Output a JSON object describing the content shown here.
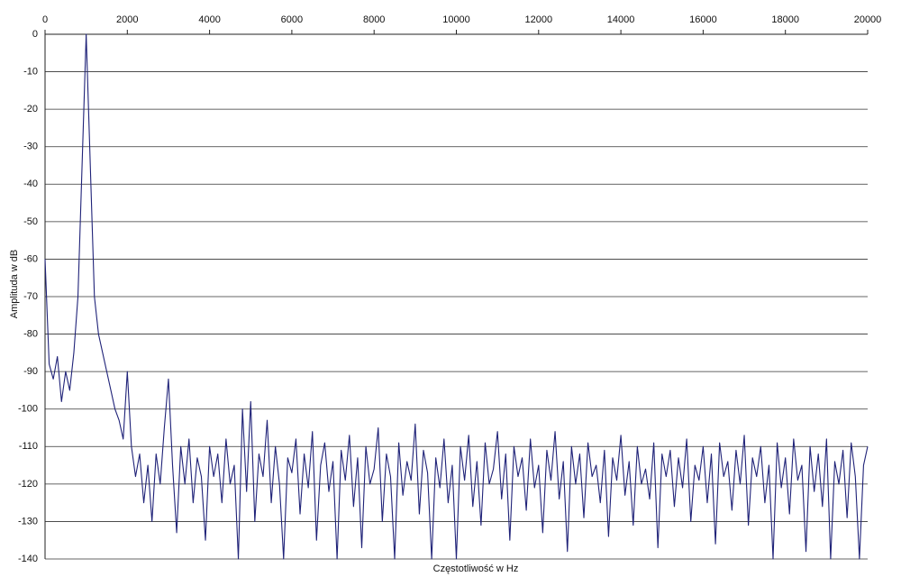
{
  "chart_data": {
    "type": "line",
    "xlabel": "Częstotliwość w Hz",
    "ylabel": "Amplituda w dB",
    "xlim": [
      0,
      20000
    ],
    "xticks": [
      0,
      2000,
      4000,
      6000,
      8000,
      10000,
      12000,
      14000,
      16000,
      18000,
      20000
    ],
    "ylim": [
      -140,
      0
    ],
    "yticks": [
      0,
      -10,
      -20,
      -30,
      -40,
      -50,
      -60,
      -70,
      -80,
      -90,
      -100,
      -110,
      -120,
      -130,
      -140
    ],
    "grid": true,
    "color": "#1f2278",
    "x": [
      0,
      100,
      200,
      300,
      400,
      500,
      600,
      700,
      800,
      900,
      1000,
      1100,
      1200,
      1300,
      1400,
      1500,
      1600,
      1700,
      1800,
      1900,
      2000,
      2100,
      2200,
      2300,
      2400,
      2500,
      2600,
      2700,
      2800,
      2900,
      3000,
      3100,
      3200,
      3300,
      3400,
      3500,
      3600,
      3700,
      3800,
      3900,
      4000,
      4100,
      4200,
      4300,
      4400,
      4500,
      4600,
      4700,
      4800,
      4900,
      5000,
      5100,
      5200,
      5300,
      5400,
      5500,
      5600,
      5700,
      5800,
      5900,
      6000,
      6100,
      6200,
      6300,
      6400,
      6500,
      6600,
      6700,
      6800,
      6900,
      7000,
      7100,
      7200,
      7300,
      7400,
      7500,
      7600,
      7700,
      7800,
      7900,
      8000,
      8100,
      8200,
      8300,
      8400,
      8500,
      8600,
      8700,
      8800,
      8900,
      9000,
      9100,
      9200,
      9300,
      9400,
      9500,
      9600,
      9700,
      9800,
      9900,
      10000,
      10100,
      10200,
      10300,
      10400,
      10500,
      10600,
      10700,
      10800,
      10900,
      11000,
      11100,
      11200,
      11300,
      11400,
      11500,
      11600,
      11700,
      11800,
      11900,
      12000,
      12100,
      12200,
      12300,
      12400,
      12500,
      12600,
      12700,
      12800,
      12900,
      13000,
      13100,
      13200,
      13300,
      13400,
      13500,
      13600,
      13700,
      13800,
      13900,
      14000,
      14100,
      14200,
      14300,
      14400,
      14500,
      14600,
      14700,
      14800,
      14900,
      15000,
      15100,
      15200,
      15300,
      15400,
      15500,
      15600,
      15700,
      15800,
      15900,
      16000,
      16100,
      16200,
      16300,
      16400,
      16500,
      16600,
      16700,
      16800,
      16900,
      17000,
      17100,
      17200,
      17300,
      17400,
      17500,
      17600,
      17700,
      17800,
      17900,
      18000,
      18100,
      18200,
      18300,
      18400,
      18500,
      18600,
      18700,
      18800,
      18900,
      19000,
      19100,
      19200,
      19300,
      19400,
      19500,
      19600,
      19700,
      19800,
      19900,
      20000
    ],
    "values": [
      -60,
      -88,
      -92,
      -86,
      -98,
      -90,
      -95,
      -85,
      -70,
      -35,
      0,
      -35,
      -70,
      -80,
      -85,
      -90,
      -95,
      -100,
      -103,
      -108,
      -90,
      -110,
      -118,
      -112,
      -125,
      -115,
      -130,
      -112,
      -120,
      -105,
      -92,
      -115,
      -133,
      -110,
      -120,
      -108,
      -125,
      -113,
      -118,
      -135,
      -110,
      -118,
      -112,
      -125,
      -108,
      -120,
      -115,
      -140,
      -100,
      -122,
      -98,
      -130,
      -112,
      -118,
      -103,
      -125,
      -110,
      -120,
      -140,
      -113,
      -117,
      -108,
      -128,
      -112,
      -121,
      -106,
      -135,
      -115,
      -109,
      -122,
      -114,
      -140,
      -111,
      -119,
      -107,
      -126,
      -113,
      -137,
      -110,
      -120,
      -116,
      -105,
      -130,
      -112,
      -118,
      -140,
      -109,
      -123,
      -114,
      -119,
      -104,
      -128,
      -111,
      -117,
      -140,
      -113,
      -121,
      -108,
      -125,
      -115,
      -140,
      -110,
      -119,
      -107,
      -126,
      -114,
      -131,
      -109,
      -120,
      -116,
      -106,
      -124,
      -112,
      -135,
      -110,
      -118,
      -113,
      -127,
      -108,
      -121,
      -115,
      -133,
      -111,
      -119,
      -106,
      -124,
      -114,
      -138,
      -110,
      -120,
      -112,
      -129,
      -109,
      -118,
      -115,
      -125,
      -111,
      -134,
      -113,
      -119,
      -107,
      -123,
      -114,
      -131,
      -110,
      -120,
      -116,
      -124,
      -109,
      -137,
      -112,
      -118,
      -111,
      -126,
      -113,
      -121,
      -108,
      -130,
      -115,
      -119,
      -110,
      -125,
      -112,
      -136,
      -109,
      -118,
      -114,
      -127,
      -111,
      -120,
      -107,
      -131,
      -113,
      -118,
      -110,
      -125,
      -115,
      -140,
      -109,
      -121,
      -113,
      -128,
      -108,
      -119,
      -115,
      -138,
      -110,
      -122,
      -112,
      -126,
      -108,
      -140,
      -114,
      -120,
      -111,
      -129,
      -109,
      -118,
      -140,
      -115,
      -110
    ]
  }
}
